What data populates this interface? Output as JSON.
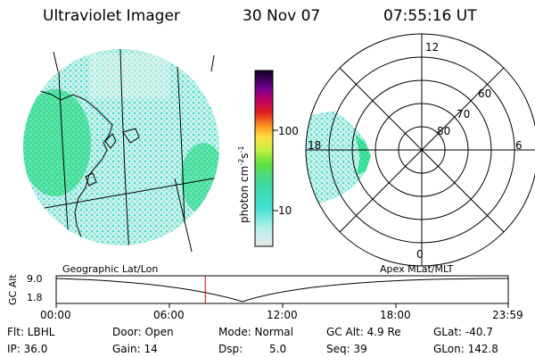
{
  "header": {
    "instrument": "Ultraviolet Imager",
    "date": "30 Nov 07",
    "time": "07:55:16 UT"
  },
  "colorbar": {
    "unit_label": "photon cm",
    "unit_sup1": "-2",
    "unit_mid": "s",
    "unit_sup2": "-1",
    "ticks": [
      "100",
      "10"
    ]
  },
  "polar": {
    "lat_labels": [
      "60",
      "70",
      "80"
    ],
    "mlt_labels": [
      "12",
      "18",
      "6",
      "0"
    ]
  },
  "frames": {
    "left_label": "Geographic Lat/Lon",
    "right_label": "Apex MLat/MLT"
  },
  "timeline": {
    "axis_title": "GC Alt",
    "y_ticks": [
      "9.0",
      "1.8"
    ],
    "x_ticks": [
      "00:00",
      "06:00",
      "12:00",
      "18:00",
      "23:59"
    ],
    "marker_time": "07:55",
    "marker_color": "#cc0000"
  },
  "info": {
    "flt": "Flt: LBHL",
    "ip": "IP: 36.0",
    "door": "Door: Open",
    "gain": "Gain: 14",
    "mode": "Mode: Normal",
    "dsp_label": "Dsp:",
    "dsp_value": "5.0",
    "gcalt": "GC Alt: 4.9 Re",
    "seq": "Seq: 39",
    "glat": "GLat: -40.7",
    "glon": "GLon: 142.8"
  },
  "colors": {
    "aurora_cyan": "#40e0d0",
    "aurora_green": "#40d860",
    "aurora_light": "#bfeee6"
  }
}
